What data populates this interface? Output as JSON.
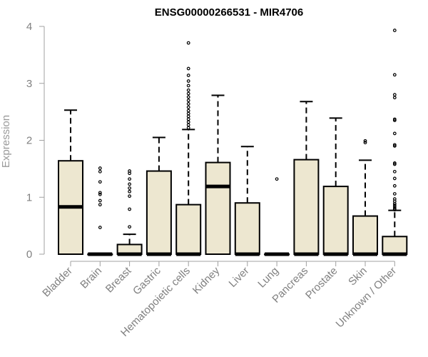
{
  "chart_data": {
    "type": "boxplot",
    "title": "ENSG00000266531 - MIR4706",
    "xlabel": "",
    "ylabel": "Expression",
    "ylim": [
      0,
      4
    ],
    "yticks": [
      0,
      1,
      2,
      3,
      4
    ],
    "ytick_labels": [
      "0",
      "1",
      "2",
      "3",
      "4"
    ],
    "grid": false,
    "legend": "none",
    "box_color": "#ede7d0",
    "categories": [
      "Bladder",
      "Brain",
      "Breast",
      "Gastric",
      "Hematopoietic cells",
      "Kidney",
      "Liver",
      "Lung",
      "Pancreas",
      "Prostate",
      "Skin",
      "Unknown / Other"
    ],
    "boxes": [
      {
        "category": "Bladder",
        "min": 0.0,
        "q1": 0.0,
        "median": 0.83,
        "q3": 1.64,
        "max": 2.53,
        "outliers": []
      },
      {
        "category": "Brain",
        "min": 0.0,
        "q1": 0.0,
        "median": 0.0,
        "q3": 0.0,
        "max": 0.0,
        "outliers": [
          1.51,
          1.45,
          1.27,
          1.08,
          1.05,
          0.94,
          0.87,
          0.47
        ]
      },
      {
        "category": "Breast",
        "min": 0.0,
        "q1": 0.0,
        "median": 0.0,
        "q3": 0.17,
        "max": 0.35,
        "outliers": [
          1.46,
          1.42,
          1.32,
          1.23,
          1.16,
          1.1,
          1.02,
          0.79,
          0.48
        ]
      },
      {
        "category": "Gastric",
        "min": 0.0,
        "q1": 0.0,
        "median": 0.0,
        "q3": 1.46,
        "max": 2.05,
        "outliers": []
      },
      {
        "category": "Hematopoietic cells",
        "min": 0.0,
        "q1": 0.0,
        "median": 0.0,
        "q3": 0.87,
        "max": 2.19,
        "outliers": [
          3.71,
          3.26,
          3.14,
          3.04,
          2.96,
          2.88,
          2.82,
          2.76,
          2.7,
          2.64,
          2.58,
          2.52,
          2.47,
          2.42,
          2.37,
          2.32,
          2.27,
          2.22
        ]
      },
      {
        "category": "Kidney",
        "min": 0.0,
        "q1": 0.0,
        "median": 1.19,
        "q3": 1.61,
        "max": 2.79,
        "outliers": []
      },
      {
        "category": "Liver",
        "min": 0.0,
        "q1": 0.0,
        "median": 0.0,
        "q3": 0.9,
        "max": 1.89,
        "outliers": []
      },
      {
        "category": "Lung",
        "min": 0.0,
        "q1": 0.0,
        "median": 0.0,
        "q3": 0.0,
        "max": 0.0,
        "outliers": [
          1.32
        ]
      },
      {
        "category": "Pancreas",
        "min": 0.0,
        "q1": 0.0,
        "median": 0.0,
        "q3": 1.66,
        "max": 2.68,
        "outliers": []
      },
      {
        "category": "Prostate",
        "min": 0.0,
        "q1": 0.0,
        "median": 0.0,
        "q3": 1.19,
        "max": 2.39,
        "outliers": []
      },
      {
        "category": "Skin",
        "min": 0.0,
        "q1": 0.0,
        "median": 0.0,
        "q3": 0.67,
        "max": 1.65,
        "outliers": [
          1.99,
          1.96
        ]
      },
      {
        "category": "Unknown / Other",
        "min": 0.0,
        "q1": 0.0,
        "median": 0.0,
        "q3": 0.31,
        "max": 0.77,
        "outliers": [
          3.93,
          3.15,
          2.8,
          2.75,
          2.37,
          2.35,
          2.12,
          1.92,
          1.9,
          1.6,
          1.58,
          1.45,
          1.33,
          1.2,
          1.06,
          0.97,
          0.93,
          0.89,
          0.86,
          0.83,
          0.8,
          0.78
        ]
      }
    ]
  }
}
